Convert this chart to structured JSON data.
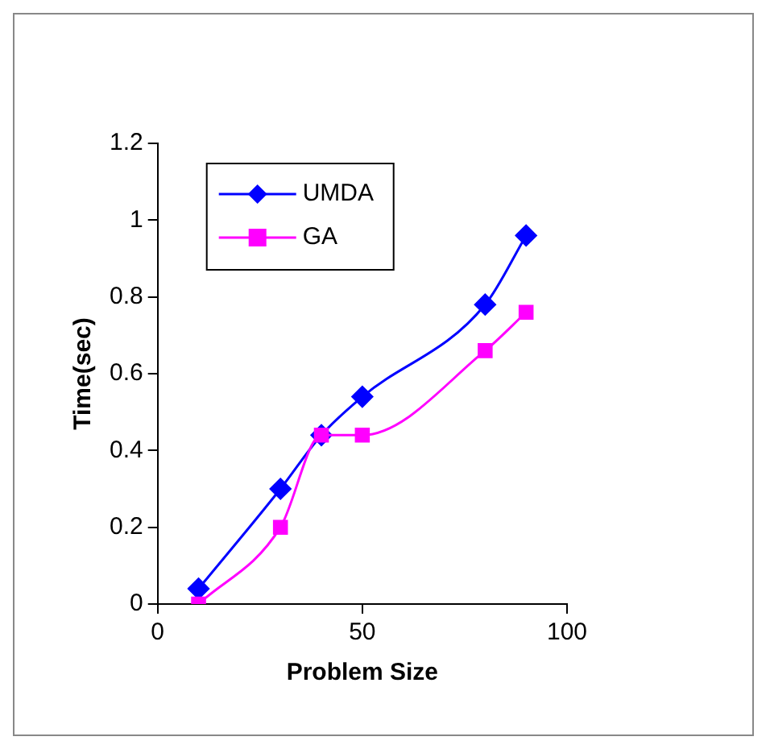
{
  "chart_data": {
    "type": "line",
    "xlabel": "Problem Size",
    "ylabel": "Time(sec)",
    "x": [
      10,
      30,
      40,
      50,
      80,
      90
    ],
    "series": [
      {
        "name": "UMDA",
        "color": "#0000ff",
        "marker": "diamond",
        "values": [
          0.04,
          0.3,
          0.44,
          0.54,
          0.78,
          0.96
        ]
      },
      {
        "name": "GA",
        "color": "#ff00ff",
        "marker": "square",
        "values": [
          0,
          0.2,
          0.44,
          0.44,
          0.66,
          0.76
        ]
      }
    ],
    "xlim": [
      0,
      100
    ],
    "xticks": [
      0,
      50,
      100
    ],
    "ylim": [
      0,
      1.2
    ],
    "yticks": [
      0,
      0.2,
      0.4,
      0.6,
      0.8,
      1,
      1.2
    ],
    "grid": false,
    "legend": "top left",
    "line_style": "solid"
  }
}
